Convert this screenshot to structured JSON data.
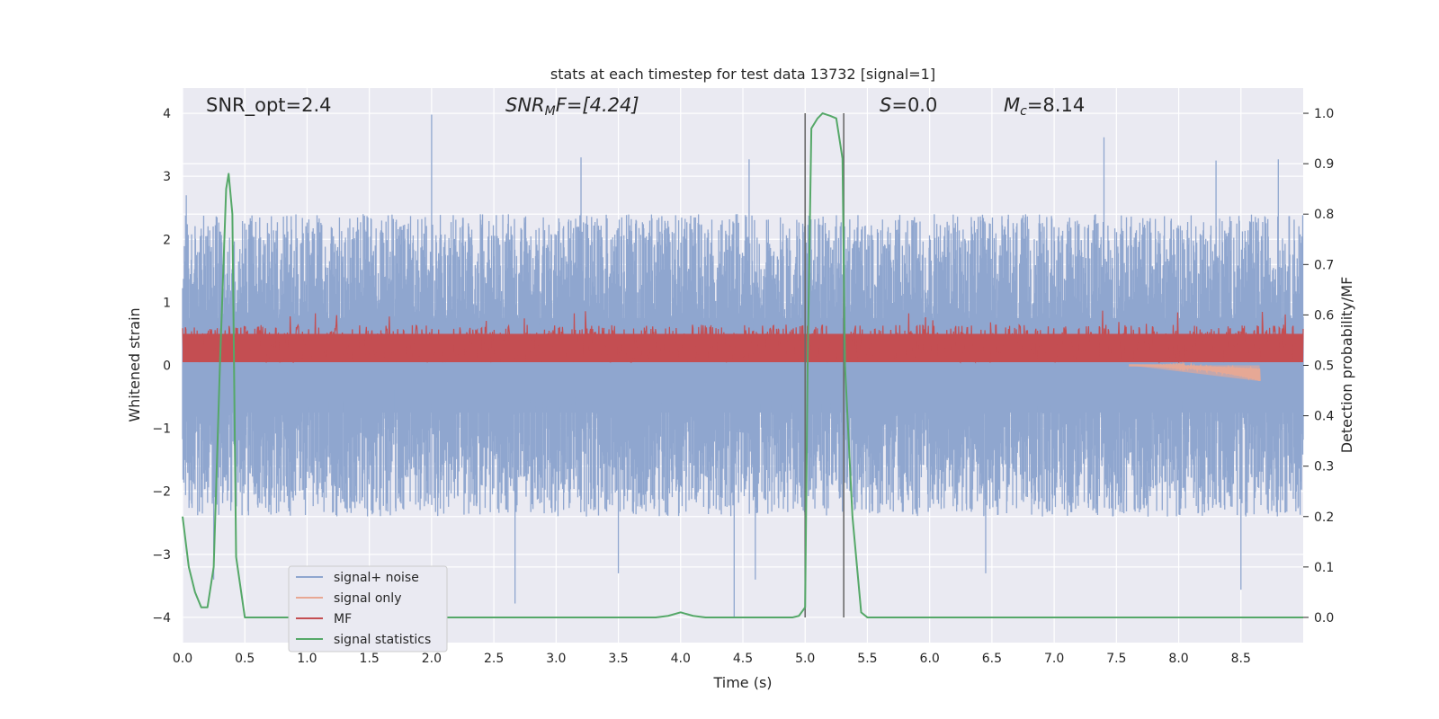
{
  "chart_data": {
    "type": "line",
    "title": "stats at each timestep for test data 13732 [signal=1]",
    "xlabel": "Time (s)",
    "ylabel": "Whitened strain",
    "y2label": "Detection probability/MF",
    "xlim": [
      0,
      9.0
    ],
    "ylim": [
      -4.4,
      4.4
    ],
    "y2lim": [
      -0.05,
      1.05
    ],
    "xticks": [
      0.0,
      0.5,
      1.0,
      1.5,
      2.0,
      2.5,
      3.0,
      3.5,
      4.0,
      4.5,
      5.0,
      5.5,
      6.0,
      6.5,
      7.0,
      7.5,
      8.0,
      8.5
    ],
    "yticks": [
      -4,
      -3,
      -2,
      -1,
      0,
      1,
      2,
      3,
      4
    ],
    "y2ticks": [
      0.0,
      0.1,
      0.2,
      0.3,
      0.4,
      0.5,
      0.6,
      0.7,
      0.8,
      0.9,
      1.0
    ],
    "grid": true,
    "legend_position": "lower-left",
    "annotations": {
      "snr_opt": "SNR_opt=2.4",
      "snr_mf_base": "SNR",
      "snr_mf_sub": "M",
      "snr_mf_rest": "F=[4.24]",
      "s_symbol": "S",
      "s_value": "=0.0",
      "mc_base": "M",
      "mc_sub": "c",
      "mc_value": "=8.14"
    },
    "vlines": [
      5.0,
      5.31
    ],
    "series": [
      {
        "name": "signal+ noise",
        "color": "#8fa6cf",
        "kind": "noise",
        "band": [
          -2.4,
          2.4
        ],
        "peaks_up": [
          [
            0.03,
            2.7
          ],
          [
            2.0,
            3.98
          ],
          [
            3.2,
            3.3
          ],
          [
            4.55,
            3.27
          ],
          [
            7.4,
            3.62
          ],
          [
            8.3,
            3.25
          ],
          [
            8.8,
            3.27
          ]
        ],
        "peaks_down": [
          [
            0.25,
            -3.4
          ],
          [
            2.67,
            -3.78
          ],
          [
            3.5,
            -3.3
          ],
          [
            4.43,
            -4.0
          ],
          [
            4.6,
            -3.4
          ],
          [
            6.45,
            -3.3
          ],
          [
            8.5,
            -3.56
          ]
        ]
      },
      {
        "name": "signal only",
        "color": "#e8a894",
        "kind": "chirp",
        "t_start": 7.6,
        "t_end": 8.65,
        "min_value": -0.25
      },
      {
        "name": "MF",
        "color": "#c44e52",
        "kind": "mf",
        "band": [
          0.05,
          0.9
        ],
        "mean": 0.32
      },
      {
        "name": "signal statistics",
        "color": "#55a868",
        "kind": "line",
        "axis": "right",
        "x": [
          0.0,
          0.05,
          0.1,
          0.15,
          0.2,
          0.25,
          0.3,
          0.35,
          0.37,
          0.4,
          0.43,
          0.5,
          0.55,
          1.0,
          2.0,
          3.0,
          3.5,
          3.8,
          3.9,
          4.0,
          4.1,
          4.2,
          4.5,
          4.9,
          4.95,
          5.0,
          5.02,
          5.05,
          5.1,
          5.14,
          5.2,
          5.25,
          5.3,
          5.32,
          5.38,
          5.45,
          5.5,
          6.0,
          7.0,
          8.0,
          9.0
        ],
        "y": [
          0.2,
          0.1,
          0.05,
          0.02,
          0.02,
          0.1,
          0.5,
          0.85,
          0.88,
          0.8,
          0.12,
          0.0,
          0.0,
          0.0,
          0.0,
          0.0,
          0.0,
          0.0,
          0.003,
          0.01,
          0.003,
          0.0,
          0.0,
          0.0,
          0.003,
          0.02,
          0.5,
          0.97,
          0.99,
          1.0,
          0.995,
          0.99,
          0.91,
          0.5,
          0.2,
          0.01,
          0.0,
          0.0,
          0.0,
          0.0,
          0.0
        ]
      }
    ]
  }
}
